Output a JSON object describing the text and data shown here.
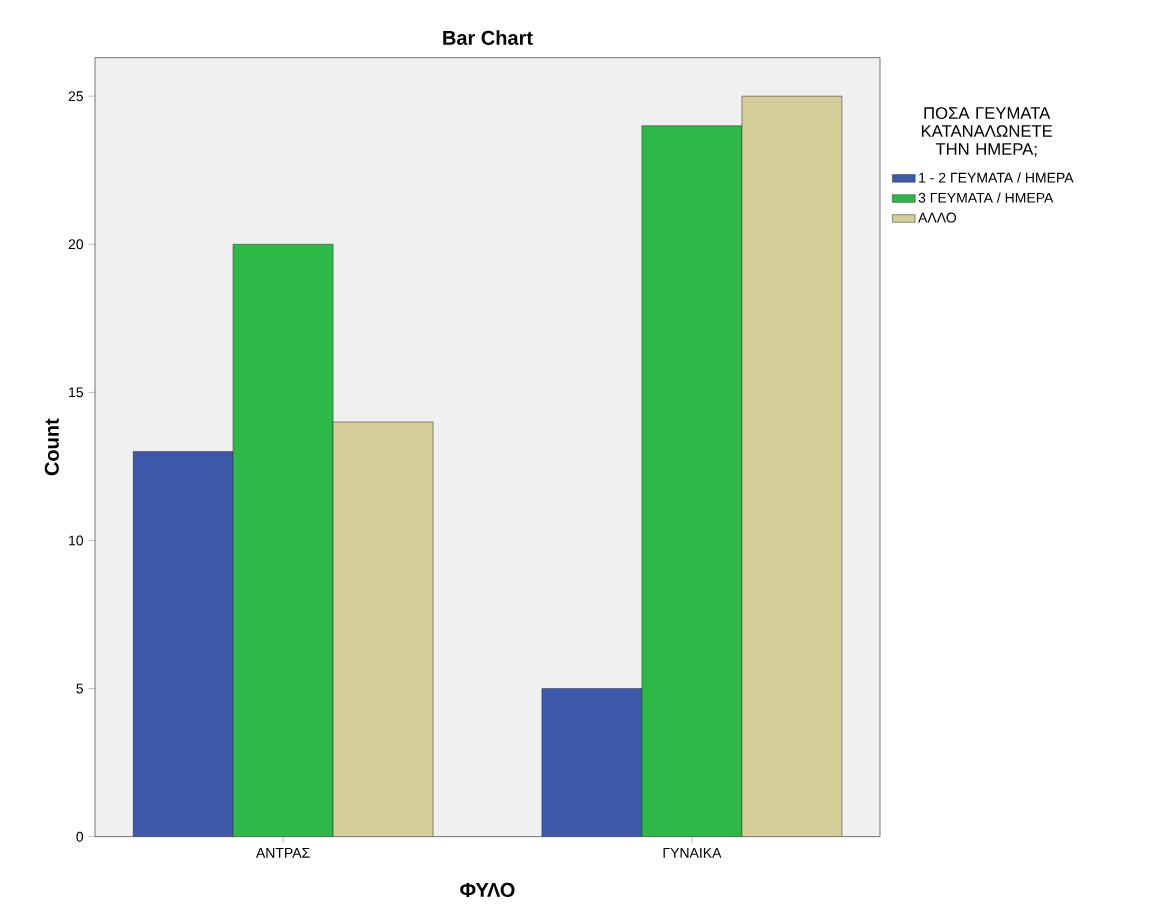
{
  "chart_data": {
    "type": "bar",
    "title": "Bar Chart",
    "xlabel": "ΦΥΛΟ",
    "ylabel": "Count",
    "legend_title": "ΠΟΣΑ ΓΕΥΜΑΤΑ ΚΑΤΑΝΑΛΩΝΕΤΕ ΤΗΝ ΗΜΕΡΑ;",
    "categories": [
      "ΑΝΤΡΑΣ",
      "ΓΥΝΑΙΚΑ"
    ],
    "series": [
      {
        "name": "1 - 2  ΓΕΥΜΑΤΑ / ΗΜΕΡΑ",
        "color": "#3e58ac",
        "values": [
          13,
          5
        ]
      },
      {
        "name": "3 ΓΕΥΜΑΤΑ / ΗΜΕΡΑ",
        "color": "#2eb848",
        "values": [
          20,
          24
        ]
      },
      {
        "name": "ΑΛΛΟ",
        "color": "#d4ce98",
        "values": [
          14,
          25
        ]
      }
    ],
    "ylim": [
      0,
      26.3
    ],
    "yticks": [
      0,
      5,
      10,
      15,
      20,
      25
    ],
    "grid": false,
    "legend": "right"
  }
}
